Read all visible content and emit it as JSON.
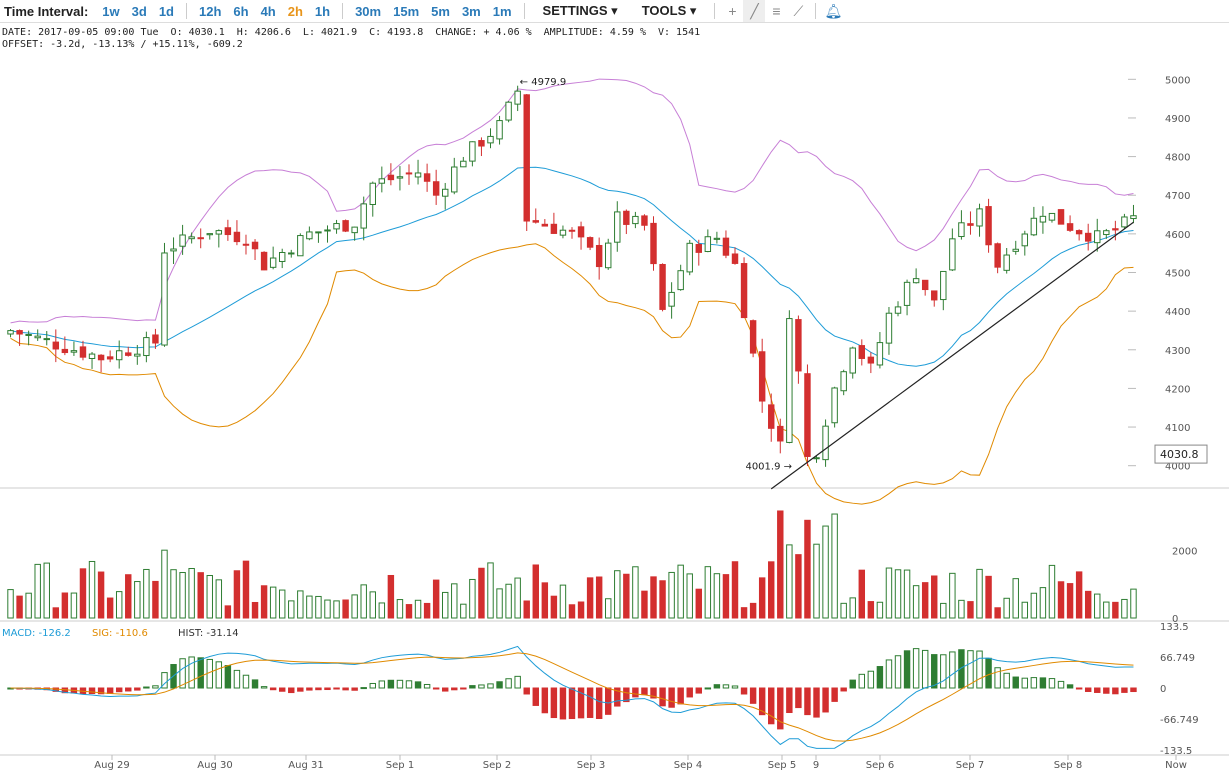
{
  "toolbar": {
    "title": "Time Interval:",
    "intervals": [
      "1w",
      "3d",
      "1d",
      "12h",
      "6h",
      "4h",
      "2h",
      "1h",
      "30m",
      "15m",
      "5m",
      "3m",
      "1m"
    ],
    "active_interval": "2h",
    "settings_label": "SETTINGS",
    "tools_label": "TOOLS",
    "tool_icons": [
      "crosshair-icon",
      "line-draw-icon",
      "fib-lines-icon",
      "fan-lines-icon",
      "alert-bell-icon"
    ]
  },
  "info": {
    "date": "DATE: 2017-09-05 09:00 Tue",
    "open": "O: 4030.1",
    "high": "H: 4206.6",
    "low": "L: 4021.9",
    "close": "C: 4193.8",
    "change": "CHANGE: + 4.06 %",
    "amplitude": "AMPLITUDE: 4.59 %",
    "volume": "V: 1541",
    "offset": "OFFSET: -3.2d, -13.13% / +15.11%, -609.2"
  },
  "chart_data": {
    "type": "candlestick",
    "x_labels": [
      "Aug 29",
      "Aug 30",
      "Aug 31",
      "Sep 1",
      "Sep 2",
      "Sep 3",
      "Sep 4",
      "Sep 5",
      "9",
      "Sep 6",
      "Sep 7",
      "Sep 8",
      "Now"
    ],
    "price_ticks": [
      4000,
      4100,
      4200,
      4300,
      4400,
      4500,
      4600,
      4700,
      4800,
      4900,
      5000
    ],
    "price_range": [
      3950,
      5050
    ],
    "current_price": "4030.8",
    "high_annotation": "← 4979.9",
    "low_annotation": "4001.9 →",
    "candle_count": 125,
    "price_path": [
      [
        0,
        4350
      ],
      [
        10,
        4280
      ],
      [
        16,
        4320
      ],
      [
        17,
        4560
      ],
      [
        22,
        4610
      ],
      [
        26,
        4590
      ],
      [
        28,
        4520
      ],
      [
        33,
        4600
      ],
      [
        38,
        4630
      ],
      [
        40,
        4730
      ],
      [
        45,
        4760
      ],
      [
        47,
        4700
      ],
      [
        50,
        4800
      ],
      [
        54,
        4880
      ],
      [
        56,
        4970
      ],
      [
        57,
        4640
      ],
      [
        62,
        4600
      ],
      [
        65,
        4530
      ],
      [
        67,
        4640
      ],
      [
        70,
        4620
      ],
      [
        72,
        4400
      ],
      [
        75,
        4560
      ],
      [
        78,
        4590
      ],
      [
        80,
        4520
      ],
      [
        83,
        4170
      ],
      [
        85,
        4050
      ],
      [
        86,
        4400
      ],
      [
        87,
        4240
      ],
      [
        88,
        4020
      ],
      [
        89,
        4040
      ],
      [
        91,
        4200
      ],
      [
        93,
        4320
      ],
      [
        95,
        4250
      ],
      [
        97,
        4390
      ],
      [
        100,
        4500
      ],
      [
        102,
        4420
      ],
      [
        104,
        4590
      ],
      [
        107,
        4650
      ],
      [
        109,
        4520
      ],
      [
        112,
        4610
      ],
      [
        114,
        4660
      ],
      [
        117,
        4620
      ],
      [
        120,
        4590
      ],
      [
        122,
        4610
      ],
      [
        124,
        4640
      ]
    ],
    "trendline": [
      [
        84,
        3940
      ],
      [
        124,
        4630
      ]
    ],
    "volume_ticks": [
      0,
      2000
    ],
    "volume_range": [
      0,
      3800
    ],
    "macd": {
      "label": "MACD:",
      "value": "-126.2",
      "sig_label": "SIG:",
      "sig_value": "-110.6",
      "hist_label": "HIST:",
      "hist_value": "-31.14",
      "ticks": [
        "133.5",
        "66.749",
        "0",
        "-66.749",
        "-133.5"
      ],
      "range": [
        -133.5,
        133.5
      ]
    },
    "colors": {
      "up": "#2e7d32",
      "down": "#d32f2f",
      "bb_upper": "#c77fd6",
      "bb_lower": "#e08a00",
      "bb_mid": "#1e9cd7",
      "macd": "#1e9cd7",
      "signal": "#e08a00",
      "trendline": "#222222"
    }
  }
}
